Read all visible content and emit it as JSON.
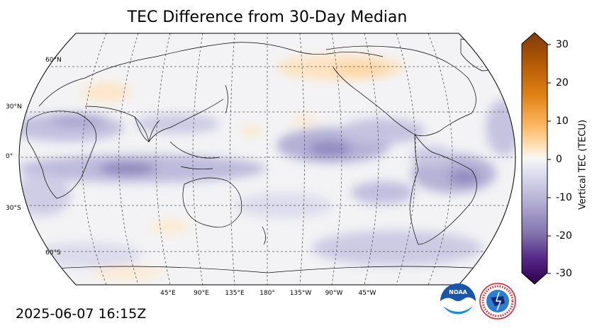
{
  "title": "TEC Difference from 30-Day Median",
  "timestamp": "2025-06-07 16:15Z",
  "colorbar": {
    "label": "Vertical TEC (TECU)",
    "ticks": [
      "30",
      "20",
      "10",
      "0",
      "-10",
      "-20",
      "-30"
    ],
    "range": [
      -30,
      30
    ],
    "colormap": "purple-white-orange (PuOr reversed)"
  },
  "lat_labels": [
    "60°N",
    "30°N",
    "0°",
    "30°S",
    "60°S"
  ],
  "lon_labels": [
    "45°E",
    "90°E",
    "135°E",
    "180°",
    "135°W",
    "90°W",
    "45°W"
  ],
  "projection": "Robinson, centered 180°",
  "logos": {
    "noaa": "NOAA",
    "nws": "NATIONAL WEATHER SERVICE"
  },
  "colors": {
    "positive_strong": "#7f3b08",
    "positive_light": "#fee0b6",
    "neutral": "#f4f4f6",
    "negative_light": "#d8daeb",
    "negative_strong": "#2d004b"
  }
}
